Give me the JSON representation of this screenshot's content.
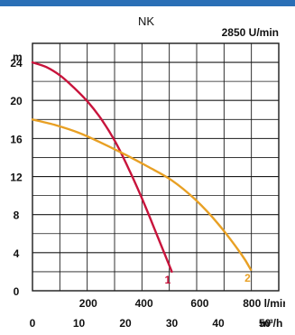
{
  "colors": {
    "top_bar": "#2a6fb6",
    "grid": "#1a1a1a",
    "series_1": "#c8143c",
    "series_2": "#e8a024",
    "text": "#111111"
  },
  "chart_data": {
    "type": "line",
    "title": "NK",
    "speed_label": "2850 U/min",
    "ylabel": "m",
    "xlabel_primary_unit": "l/min",
    "xlabel_secondary_unit": "m³/h",
    "ylim": [
      0,
      26
    ],
    "xlim_m3h": [
      0,
      53
    ],
    "grid": true,
    "y_ticks": [
      0,
      4,
      8,
      12,
      16,
      20,
      24
    ],
    "x_ticks_lmin": [
      200,
      400,
      600,
      800
    ],
    "x_ticks_lmin_labels": [
      "200",
      "400",
      "600",
      "800 l/min"
    ],
    "x_ticks_m3h": [
      0,
      10,
      20,
      30,
      40,
      50
    ],
    "x_ticks_m3h_labels": [
      "0",
      "10",
      "20",
      "30",
      "40",
      "50",
      "m³/h"
    ],
    "series": [
      {
        "name": "1",
        "color": "#c8143c",
        "points": [
          [
            0,
            24
          ],
          [
            3,
            23.5
          ],
          [
            6,
            22.6
          ],
          [
            9,
            21.3
          ],
          [
            12,
            19.8
          ],
          [
            15,
            17.9
          ],
          [
            18,
            15.5
          ],
          [
            21,
            12.5
          ],
          [
            24,
            9.2
          ],
          [
            27,
            5.6
          ],
          [
            30,
            2.0
          ]
        ]
      },
      {
        "name": "2",
        "color": "#e8a024",
        "points": [
          [
            0,
            18
          ],
          [
            5,
            17.4
          ],
          [
            10,
            16.6
          ],
          [
            15,
            15.5
          ],
          [
            20,
            14.3
          ],
          [
            25,
            13.0
          ],
          [
            30,
            11.6
          ],
          [
            35,
            9.6
          ],
          [
            40,
            7.0
          ],
          [
            45,
            3.8
          ],
          [
            47,
            2.2
          ]
        ]
      }
    ]
  }
}
